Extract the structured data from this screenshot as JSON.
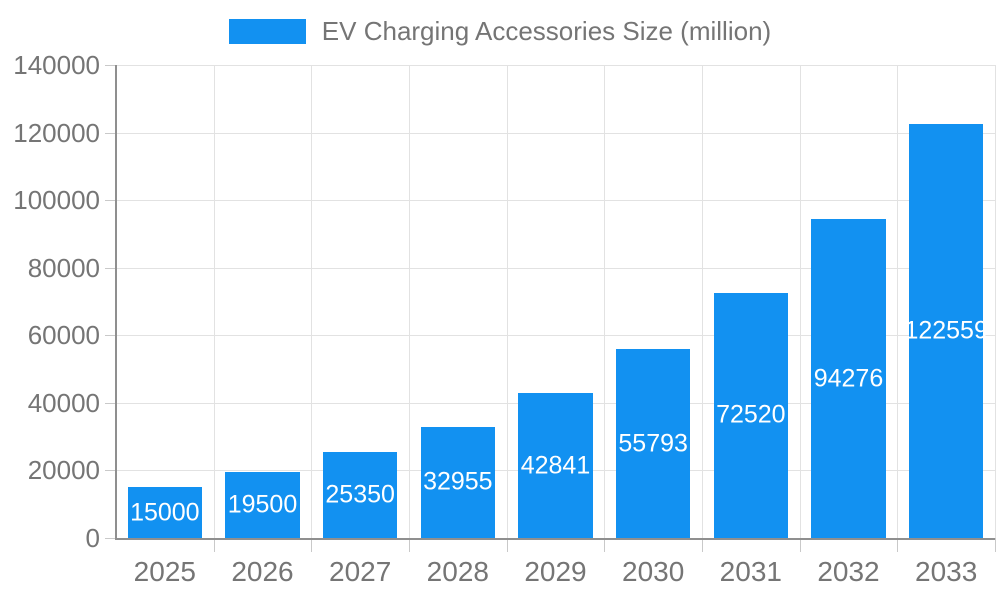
{
  "legend": {
    "label": "EV Charging Accessories Size (million)"
  },
  "colors": {
    "bar": "#1291F1",
    "grid": "#e2e2e2",
    "axis": "#8f8f8f",
    "tick": "#c9c9c9",
    "text": "#757575",
    "bar_label": "#ffffff",
    "background": "#ffffff"
  },
  "chart_data": {
    "type": "bar",
    "title": "EV Charging Accessories Size (million)",
    "categories": [
      "2025",
      "2026",
      "2027",
      "2028",
      "2029",
      "2030",
      "2031",
      "2032",
      "2033"
    ],
    "values": [
      15000,
      19500,
      25350,
      32955,
      42841,
      55793,
      72520,
      94276,
      122559
    ],
    "xlabel": "",
    "ylabel": "",
    "ylim": [
      0,
      140000
    ],
    "ytick_step": 20000,
    "ytick_labels": [
      "0",
      "20000",
      "40000",
      "60000",
      "80000",
      "100000",
      "120000",
      "140000"
    ],
    "grid": true,
    "legend_position": "top-center",
    "data_labels": "white-centered-inside-bars"
  }
}
